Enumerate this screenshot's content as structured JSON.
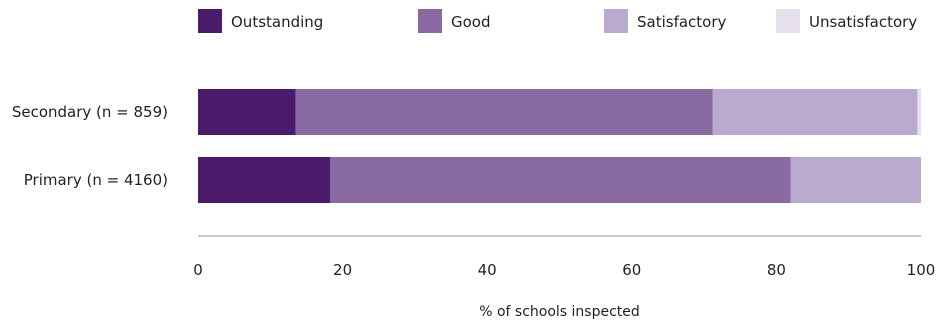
{
  "chart_data": {
    "type": "bar",
    "orientation": "horizontal",
    "stacked": true,
    "categories": [
      "Secondary (n = 859)",
      "Primary (n = 4160)"
    ],
    "series": [
      {
        "name": "Outstanding",
        "color": "#4a1a6b",
        "values": [
          13.5,
          18.3
        ]
      },
      {
        "name": "Good",
        "color": "#8a6aa2",
        "values": [
          57.7,
          63.7
        ]
      },
      {
        "name": "Satisfactory",
        "color": "#bbaacf",
        "values": [
          28.3,
          18.0
        ]
      },
      {
        "name": "Unsatisfactory",
        "color": "#e6e0ee",
        "values": [
          0.5,
          0.0
        ]
      }
    ],
    "xlim": [
      0,
      100
    ],
    "xticks": [
      0,
      20,
      40,
      60,
      80,
      100
    ],
    "xlabel": "% of schools inspected",
    "title": "",
    "legend_position": "top",
    "grid": false
  },
  "axis_color": "#a8a8a8"
}
